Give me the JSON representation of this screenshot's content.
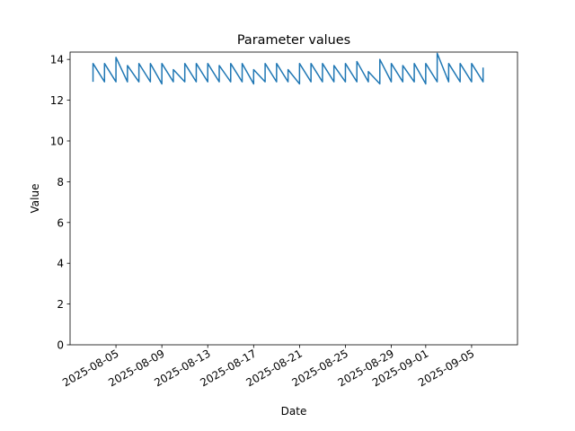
{
  "chart_data": {
    "type": "line",
    "title": "Parameter values",
    "x_label": "Date",
    "y_label": "Value",
    "x": [
      "2025-08-03",
      "2025-08-03",
      "2025-08-04",
      "2025-08-04",
      "2025-08-05",
      "2025-08-05",
      "2025-08-06",
      "2025-08-06",
      "2025-08-07",
      "2025-08-07",
      "2025-08-08",
      "2025-08-08",
      "2025-08-09",
      "2025-08-09",
      "2025-08-10",
      "2025-08-10",
      "2025-08-11",
      "2025-08-11",
      "2025-08-12",
      "2025-08-12",
      "2025-08-13",
      "2025-08-13",
      "2025-08-14",
      "2025-08-14",
      "2025-08-15",
      "2025-08-15",
      "2025-08-16",
      "2025-08-16",
      "2025-08-17",
      "2025-08-17",
      "2025-08-18",
      "2025-08-18",
      "2025-08-19",
      "2025-08-19",
      "2025-08-20",
      "2025-08-20",
      "2025-08-21",
      "2025-08-21",
      "2025-08-22",
      "2025-08-22",
      "2025-08-23",
      "2025-08-23",
      "2025-08-24",
      "2025-08-24",
      "2025-08-25",
      "2025-08-25",
      "2025-08-26",
      "2025-08-26",
      "2025-08-27",
      "2025-08-27",
      "2025-08-28",
      "2025-08-28",
      "2025-08-29",
      "2025-08-29",
      "2025-08-30",
      "2025-08-30",
      "2025-08-31",
      "2025-08-31",
      "2025-09-01",
      "2025-09-01",
      "2025-09-02",
      "2025-09-02",
      "2025-09-03",
      "2025-09-03",
      "2025-09-04",
      "2025-09-04",
      "2025-09-05",
      "2025-09-05",
      "2025-09-06",
      "2025-09-06"
    ],
    "series": [
      {
        "name": "Value",
        "color": "#1f77b4",
        "values": [
          12.9,
          13.8,
          12.9,
          13.8,
          12.9,
          14.1,
          12.9,
          13.7,
          12.9,
          13.8,
          12.9,
          13.8,
          12.8,
          13.8,
          12.9,
          13.5,
          12.9,
          13.8,
          12.9,
          13.8,
          12.9,
          13.8,
          12.9,
          13.7,
          12.9,
          13.8,
          12.9,
          13.8,
          12.8,
          13.5,
          12.9,
          13.8,
          12.9,
          13.8,
          12.9,
          13.5,
          12.8,
          13.8,
          12.9,
          13.8,
          12.9,
          13.8,
          12.9,
          13.7,
          12.9,
          13.8,
          12.9,
          13.9,
          12.9,
          13.4,
          12.8,
          14.0,
          12.9,
          13.8,
          12.9,
          13.7,
          12.9,
          13.8,
          12.8,
          13.8,
          12.9,
          14.3,
          12.9,
          13.8,
          12.9,
          13.8,
          12.9,
          13.8,
          12.9,
          13.6
        ]
      }
    ],
    "xlim": [
      "2025-08-01",
      "2025-09-09"
    ],
    "xticks": [
      "2025-08-05",
      "2025-08-09",
      "2025-08-13",
      "2025-08-17",
      "2025-08-21",
      "2025-08-25",
      "2025-08-29",
      "2025-09-01",
      "2025-09-05"
    ],
    "ylim": [
      0,
      14.36
    ],
    "yticks": [
      0,
      2,
      4,
      6,
      8,
      10,
      12,
      14
    ],
    "grid": false
  }
}
